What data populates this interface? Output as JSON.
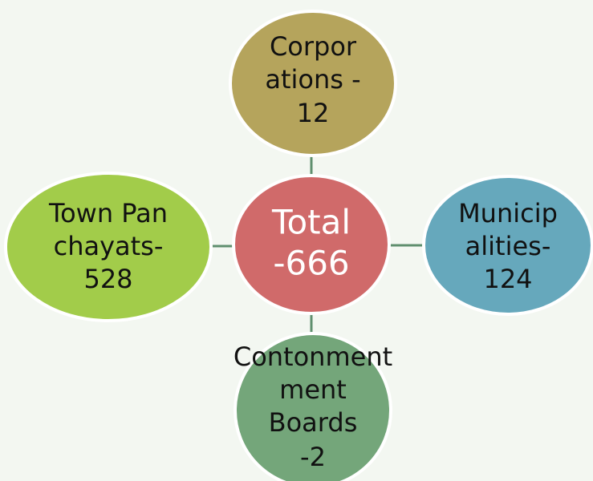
{
  "nodes": [
    {
      "lines": [
        "Total",
        "-666"
      ]
    },
    {
      "lines": [
        "Corpor",
        "ations -",
        "12"
      ]
    },
    {
      "lines": [
        "Municip",
        "alities-",
        "124"
      ]
    },
    {
      "lines": [
        "Contonment",
        "ment",
        "Boards",
        "-2"
      ]
    },
    {
      "lines": [
        "Town Pan",
        "chayats-",
        "528"
      ]
    }
  ]
}
